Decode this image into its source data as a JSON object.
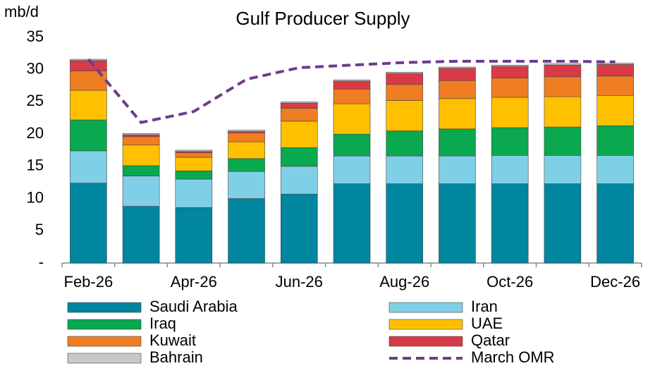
{
  "chart_data": {
    "type": "stacked-bar",
    "title": "Gulf Producer Supply",
    "y_label": "mb/d",
    "categories": [
      "Feb-26",
      null,
      "Apr-26",
      null,
      "Jun-26",
      null,
      "Aug-26",
      null,
      "Oct-26",
      null,
      "Dec-26"
    ],
    "ylim": [
      0,
      35
    ],
    "yticks": [
      {
        "value": 0,
        "label": "-"
      },
      5,
      10,
      15,
      20,
      25,
      30,
      35
    ],
    "series": [
      {
        "name": "Saudi Arabia",
        "color": "#00869e",
        "values": [
          12.4,
          8.8,
          8.6,
          10.0,
          10.7,
          12.3,
          12.3,
          12.3,
          12.3,
          12.3,
          12.3
        ]
      },
      {
        "name": "Iran",
        "color": "#7fd0e6",
        "values": [
          5.0,
          4.7,
          4.4,
          4.2,
          4.3,
          4.3,
          4.3,
          4.3,
          4.4,
          4.4,
          4.4
        ]
      },
      {
        "name": "Iraq",
        "color": "#0aa84f",
        "values": [
          4.8,
          1.6,
          1.3,
          2.0,
          2.9,
          3.4,
          3.9,
          4.2,
          4.3,
          4.4,
          4.6
        ]
      },
      {
        "name": "UAE",
        "color": "#ffc000",
        "values": [
          4.6,
          3.2,
          2.1,
          2.6,
          4.1,
          4.7,
          4.7,
          4.7,
          4.7,
          4.7,
          4.7
        ]
      },
      {
        "name": "Kuwait",
        "color": "#ef7d22",
        "values": [
          3.0,
          1.3,
          0.7,
          1.4,
          2.0,
          2.3,
          2.5,
          2.8,
          3.0,
          3.1,
          3.0
        ]
      },
      {
        "name": "Qatar",
        "color": "#d93a48",
        "values": [
          1.6,
          0.3,
          0.2,
          0.2,
          0.8,
          1.2,
          1.7,
          1.9,
          1.8,
          1.8,
          1.8
        ]
      },
      {
        "name": "Bahrain",
        "color": "#c8c8c8",
        "values": [
          0.2,
          0.2,
          0.2,
          0.2,
          0.2,
          0.2,
          0.2,
          0.2,
          0.2,
          0.2,
          0.2
        ]
      }
    ],
    "line": {
      "name": "March OMR",
      "color": "#6b3d8f",
      "values": [
        31.6,
        21.8,
        23.5,
        28.5,
        30.3,
        30.7,
        31.1,
        31.3,
        31.3,
        31.3,
        31.2
      ]
    }
  }
}
